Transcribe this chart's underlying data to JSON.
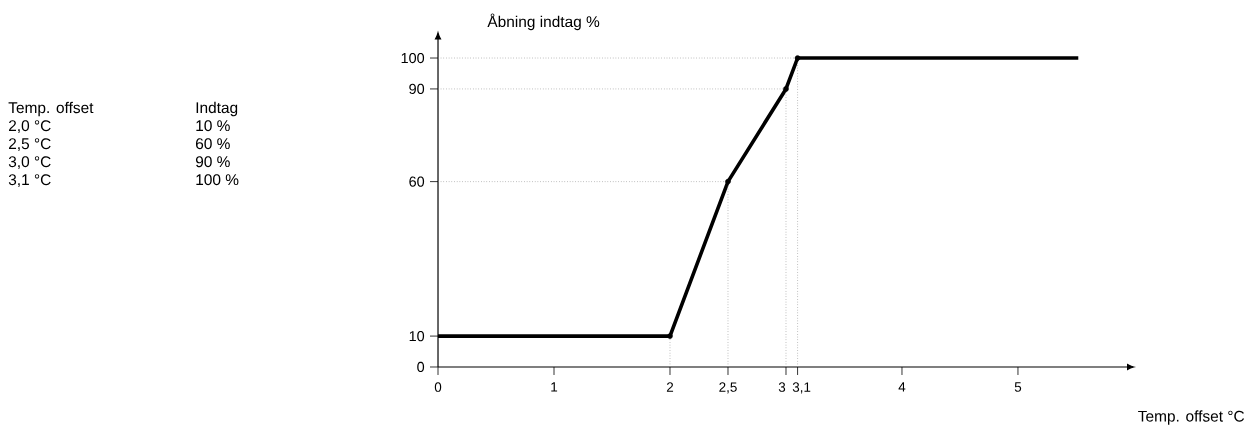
{
  "chart_data": {
    "type": "line",
    "xlabel": "Temp. offset °C",
    "ylabel": "Åbning indtag %",
    "xlim": [
      0,
      5.94
    ],
    "ylim": [
      0,
      106
    ],
    "xticks": [
      0,
      1,
      2,
      {
        "value": 2.5,
        "label": "2,5"
      },
      3,
      {
        "value": 3.1,
        "label": "3,1"
      },
      4,
      5
    ],
    "yticks": [
      0,
      10,
      60,
      90,
      100
    ],
    "series": [
      {
        "color": "#000000",
        "marker": "none",
        "x": [
          0,
          2,
          2.5,
          3,
          3.1,
          5.52
        ],
        "values": [
          10,
          10,
          60,
          90,
          100,
          100
        ]
      },
      {
        "type": "line",
        "color": "#808080",
        "line_style": "dotted",
        "marker": "none",
        "x": [
          0,
          2.5
        ],
        "values": [
          60,
          60
        ]
      },
      {
        "type": "line",
        "color": "#808080",
        "line_style": "dotted",
        "marker": "none",
        "x": [
          0,
          3
        ],
        "values": [
          90,
          90
        ]
      },
      {
        "type": "line",
        "color": "#808080",
        "line_style": "dotted",
        "marker": "none",
        "x": [
          0,
          3.1
        ],
        "values": [
          100,
          100
        ]
      },
      {
        "type": "line",
        "color": "#808080",
        "line_style": "dotted",
        "marker": "none",
        "x": [
          2,
          2
        ],
        "values": [
          0,
          10
        ]
      },
      {
        "type": "line",
        "color": "#808080",
        "line_style": "dotted",
        "marker": "none",
        "x": [
          2.5,
          2.5
        ],
        "values": [
          0,
          60
        ]
      },
      {
        "type": "line",
        "color": "#808080",
        "line_style": "dotted",
        "marker": "none",
        "x": [
          3,
          3
        ],
        "values": [
          0,
          90
        ]
      },
      {
        "type": "line",
        "color": "#808080",
        "line_style": "dotted",
        "marker": "none",
        "x": [
          3.1,
          3.1
        ],
        "values": [
          0,
          100
        ]
      },
      {
        "type": "scatter",
        "color": "#000000",
        "marker": "circle",
        "x": [
          2,
          2.5,
          3,
          3.1
        ],
        "values": [
          10,
          60,
          90,
          100
        ]
      }
    ],
    "annotations": [
      "Temp. offset",
      "Indtag",
      "2,0 °C",
      "10 %",
      "2,5 °C",
      "60 %",
      "3,0 °C",
      "90 %",
      "3,1 °C",
      "100 %"
    ]
  }
}
